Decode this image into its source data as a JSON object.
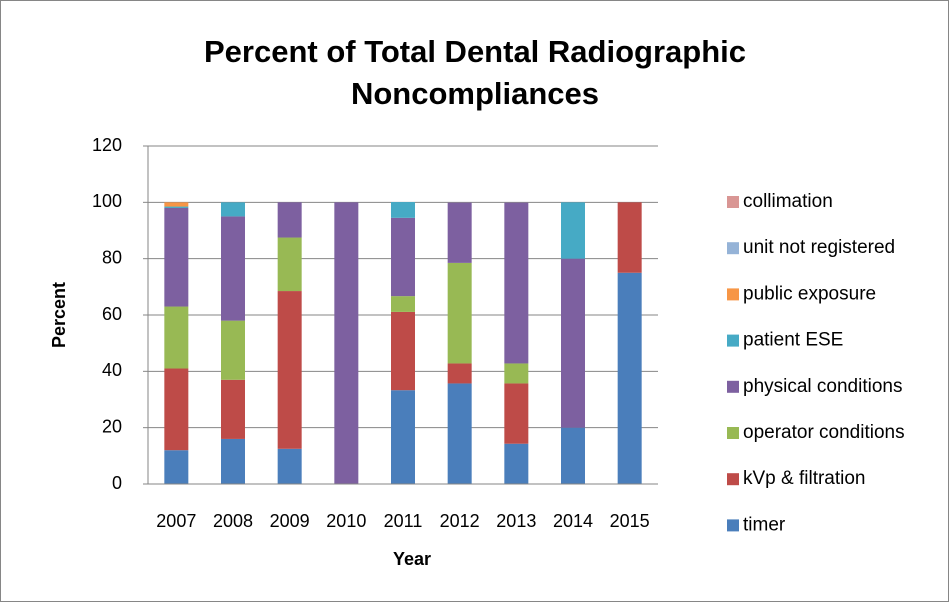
{
  "chart_data": {
    "type": "stacked_bar",
    "title": [
      "Percent of Total Dental Radiographic",
      "Noncompliances"
    ],
    "x_label": "Year",
    "y_label": "Percent",
    "categories": [
      "2007",
      "2008",
      "2009",
      "2010",
      "2011",
      "2012",
      "2013",
      "2014",
      "2015"
    ],
    "series": [
      {
        "name": "timer",
        "color": "#4a7ebb",
        "values": [
          12,
          16,
          12.5,
          0,
          33.3,
          35.7,
          14.3,
          20,
          75
        ]
      },
      {
        "name": "kVp & filtration",
        "color": "#be4b48",
        "values": [
          29,
          21,
          56,
          0,
          27.8,
          7.1,
          21.4,
          0,
          25
        ]
      },
      {
        "name": "operator conditions",
        "color": "#98b954",
        "values": [
          22,
          21,
          19,
          0,
          5.6,
          35.7,
          7.1,
          0,
          0
        ]
      },
      {
        "name": "physical conditions",
        "color": "#7d60a0",
        "values": [
          35,
          37,
          12.5,
          100,
          27.8,
          21.4,
          57.1,
          60,
          0
        ]
      },
      {
        "name": "patient ESE",
        "color": "#46aac5",
        "values": [
          0.5,
          5,
          0,
          0,
          5.6,
          0,
          0,
          20,
          0
        ]
      },
      {
        "name": "public exposure",
        "color": "#f79646",
        "values": [
          1.5,
          0,
          0,
          0,
          0,
          0,
          0,
          0,
          0
        ]
      },
      {
        "name": "unit not registered",
        "color": "#95b3d7",
        "values": [
          0,
          0,
          0,
          0,
          0,
          0,
          0,
          0,
          0
        ]
      },
      {
        "name": "collimation",
        "color": "#d99694",
        "values": [
          0,
          0,
          0,
          0,
          0,
          0,
          0,
          0,
          0
        ]
      }
    ],
    "ylim": [
      0,
      120
    ],
    "yticks": [
      0,
      20,
      40,
      60,
      80,
      100,
      120
    ],
    "grid": true,
    "legend": "right"
  }
}
